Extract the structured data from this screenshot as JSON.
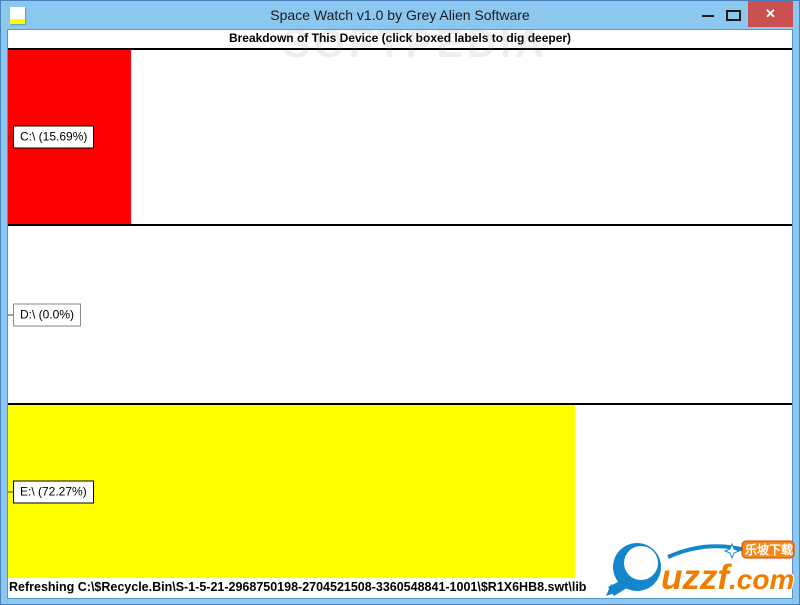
{
  "window": {
    "title": "Space Watch v1.0 by Grey Alien Software",
    "controls": {
      "close_glyph": "✕"
    }
  },
  "header": {
    "text": "Breakdown of This Device (click boxed labels to dig deeper)"
  },
  "watermark": {
    "text": "SOFTPEDIA"
  },
  "chart_data": {
    "type": "bar",
    "orientation": "horizontal",
    "title": "Breakdown of This Device",
    "categories": [
      "C:\\",
      "D:\\",
      "E:\\"
    ],
    "values": [
      15.69,
      0.0,
      72.27
    ],
    "unit": "%",
    "xlim": [
      0,
      100
    ],
    "bar_colors": [
      "#FF0000",
      "#FFFFFF",
      "#FFFF00"
    ],
    "data_labels": [
      "C:\\ (15.69%)",
      "D:\\ (0.0%)",
      "E:\\ (72.27%)"
    ],
    "legend": "none",
    "grid": false
  },
  "sections": [
    {
      "drive": "C:\\",
      "label": "C:\\ (15.69%)",
      "value": 15.69,
      "color": "#FF0000",
      "box_border": "#000000"
    },
    {
      "drive": "D:\\",
      "label": "D:\\ (0.0%)",
      "value": 0.0,
      "color": "#FFFFFF",
      "box_border": "#8A8A8A"
    },
    {
      "drive": "E:\\",
      "label": "E:\\ (72.27%)",
      "value": 72.27,
      "color": "#FFFF00",
      "box_border": "#000000"
    }
  ],
  "status": {
    "text": "Refreshing C:\\$Recycle.Bin\\S-1-5-21-2968750198-2704521508-3360548841-1001\\$R1X6HB8.swt\\lib"
  },
  "logo": {
    "site": "uzzf",
    "tld": ".com",
    "badge": "乐坡下载"
  },
  "colors": {
    "titlebar": "#8CC7F0",
    "frame_border": "#4A82BE",
    "close_button": "#C9504E",
    "bar_red": "#FF0000",
    "bar_yellow": "#FFFF00",
    "logo_blue": "#1487CC",
    "logo_orange": "#EE7D00"
  }
}
